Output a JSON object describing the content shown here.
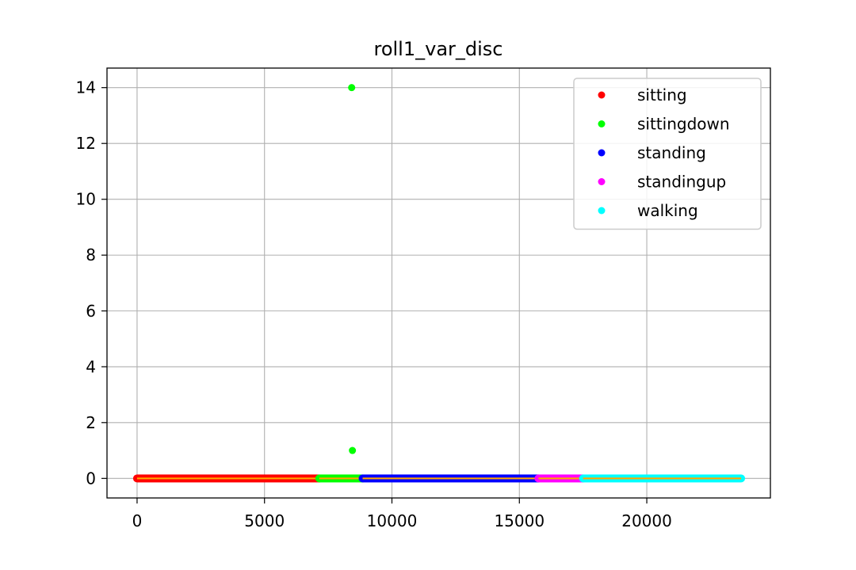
{
  "chart_data": {
    "type": "scatter",
    "title": "roll1_var_disc",
    "xlabel": "",
    "ylabel": "",
    "xlim": [
      -1180,
      24850
    ],
    "ylim": [
      -0.7,
      14.7
    ],
    "xticks": [
      0,
      5000,
      10000,
      15000,
      20000
    ],
    "yticks": [
      0,
      2,
      4,
      6,
      8,
      10,
      12,
      14
    ],
    "grid": true,
    "legend_position": "top-right",
    "baseline_line_color": "#ffa500",
    "series": [
      {
        "name": "sitting",
        "color": "#ff0000",
        "x_range": [
          0,
          7150
        ],
        "baseline_y": 0,
        "points": []
      },
      {
        "name": "sittingdown",
        "color": "#00ff00",
        "x_range": [
          7150,
          8850
        ],
        "baseline_y": 0,
        "points": [
          {
            "x": 8420,
            "y": 14
          },
          {
            "x": 8450,
            "y": 1
          }
        ]
      },
      {
        "name": "standing",
        "color": "#0000ff",
        "x_range": [
          8850,
          15750
        ],
        "baseline_y": 0,
        "points": []
      },
      {
        "name": "standingup",
        "color": "#ff00ff",
        "x_range": [
          15750,
          17500
        ],
        "baseline_y": 0,
        "points": []
      },
      {
        "name": "walking",
        "color": "#00ffff",
        "x_range": [
          17500,
          23700
        ],
        "baseline_y": 0,
        "points": []
      }
    ]
  }
}
